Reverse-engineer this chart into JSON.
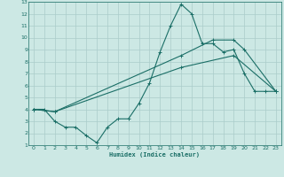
{
  "xlabel": "Humidex (Indice chaleur)",
  "bg_color": "#cce8e4",
  "grid_color": "#aaccca",
  "line_color": "#1a6e66",
  "xlim": [
    -0.5,
    23.5
  ],
  "ylim": [
    1,
    13
  ],
  "xticks": [
    0,
    1,
    2,
    3,
    4,
    5,
    6,
    7,
    8,
    9,
    10,
    11,
    12,
    13,
    14,
    15,
    16,
    17,
    18,
    19,
    20,
    21,
    22,
    23
  ],
  "yticks": [
    1,
    2,
    3,
    4,
    5,
    6,
    7,
    8,
    9,
    10,
    11,
    12,
    13
  ],
  "series": [
    {
      "x": [
        0,
        1,
        2,
        3,
        4,
        5,
        6,
        7,
        8,
        9,
        10,
        11,
        12,
        13,
        14,
        15,
        16,
        17,
        18,
        19,
        20,
        21,
        22,
        23
      ],
      "y": [
        4,
        4,
        3,
        2.5,
        2.5,
        1.8,
        1.2,
        2.5,
        3.2,
        3.2,
        4.5,
        6.2,
        8.8,
        11,
        12.8,
        12,
        9.5,
        9.5,
        8.8,
        9.0,
        7.0,
        5.5,
        5.5,
        5.5
      ]
    },
    {
      "x": [
        0,
        2,
        14,
        17,
        19,
        20,
        23
      ],
      "y": [
        4,
        3.8,
        8.5,
        9.8,
        9.8,
        9.0,
        5.5
      ]
    },
    {
      "x": [
        0,
        2,
        14,
        19,
        23
      ],
      "y": [
        4,
        3.8,
        7.5,
        8.5,
        5.5
      ]
    }
  ]
}
